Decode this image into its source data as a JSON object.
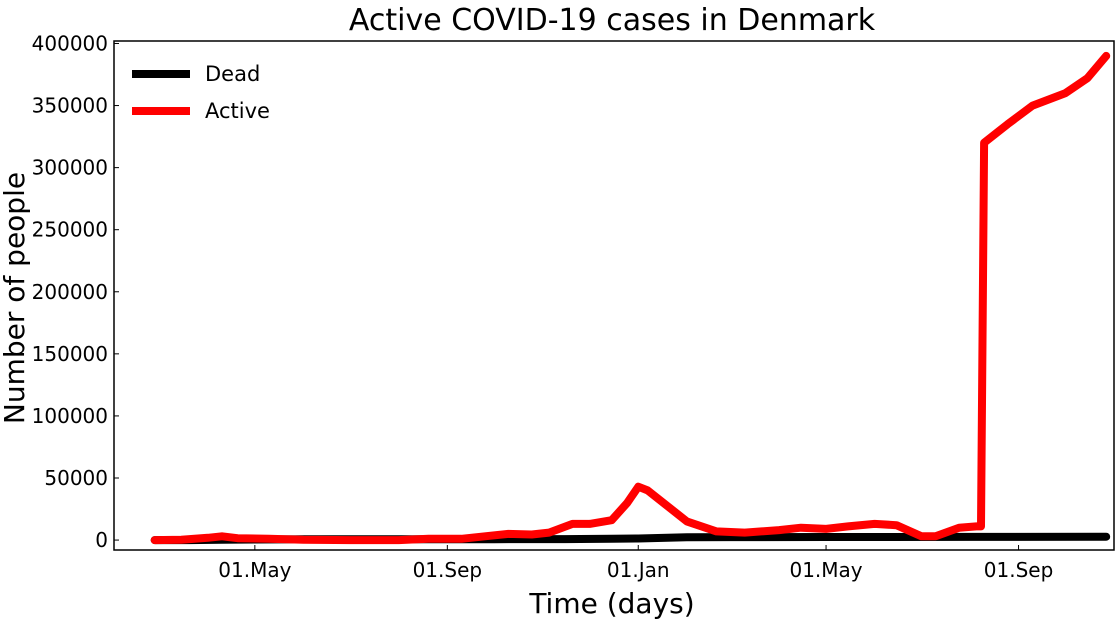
{
  "chart_data": {
    "type": "line",
    "title": "Active COVID-19 cases in Denmark",
    "xlabel": "Time (days)",
    "ylabel": "Number of people",
    "ylim": [
      -8000,
      402000
    ],
    "xlim": [
      "2020-02-01",
      "2021-11-01"
    ],
    "x_ticks": [
      {
        "date": "2020-05-01",
        "label": "01.May"
      },
      {
        "date": "2020-09-01",
        "label": "01.Sep"
      },
      {
        "date": "2021-01-01",
        "label": "01.Jan"
      },
      {
        "date": "2021-05-01",
        "label": "01.May"
      },
      {
        "date": "2021-09-01",
        "label": "01.Sep"
      }
    ],
    "y_ticks": [
      0,
      50000,
      100000,
      150000,
      200000,
      250000,
      300000,
      350000,
      400000
    ],
    "grid": false,
    "legend": "top-left",
    "series": [
      {
        "name": "Dead",
        "color": "#000000",
        "points": [
          [
            "2020-02-27",
            0
          ],
          [
            "2020-03-20",
            10
          ],
          [
            "2020-04-10",
            250
          ],
          [
            "2020-05-01",
            450
          ],
          [
            "2020-06-01",
            590
          ],
          [
            "2020-08-01",
            620
          ],
          [
            "2020-10-01",
            670
          ],
          [
            "2020-11-15",
            780
          ],
          [
            "2020-12-15",
            1000
          ],
          [
            "2021-01-01",
            1300
          ],
          [
            "2021-02-01",
            2200
          ],
          [
            "2021-03-01",
            2400
          ],
          [
            "2021-05-01",
            2500
          ],
          [
            "2021-08-01",
            2560
          ],
          [
            "2021-10-27",
            2700
          ]
        ]
      },
      {
        "name": "Active",
        "color": "#ff0000",
        "points": [
          [
            "2020-02-27",
            0
          ],
          [
            "2020-03-15",
            300
          ],
          [
            "2020-04-01",
            1800
          ],
          [
            "2020-04-10",
            3000
          ],
          [
            "2020-04-20",
            1500
          ],
          [
            "2020-05-10",
            1000
          ],
          [
            "2020-06-01",
            200
          ],
          [
            "2020-07-01",
            0
          ],
          [
            "2020-08-01",
            0
          ],
          [
            "2020-08-20",
            1000
          ],
          [
            "2020-09-10",
            1000
          ],
          [
            "2020-09-25",
            3000
          ],
          [
            "2020-10-10",
            5000
          ],
          [
            "2020-10-25",
            4500
          ],
          [
            "2020-11-05",
            6000
          ],
          [
            "2020-11-20",
            13000
          ],
          [
            "2020-12-01",
            13000
          ],
          [
            "2020-12-15",
            16000
          ],
          [
            "2020-12-25",
            30000
          ],
          [
            "2021-01-01",
            43000
          ],
          [
            "2021-01-07",
            40000
          ],
          [
            "2021-01-20",
            27000
          ],
          [
            "2021-02-01",
            15000
          ],
          [
            "2021-02-20",
            7000
          ],
          [
            "2021-03-10",
            6000
          ],
          [
            "2021-04-01",
            8000
          ],
          [
            "2021-04-15",
            10000
          ],
          [
            "2021-05-01",
            9000
          ],
          [
            "2021-05-15",
            11000
          ],
          [
            "2021-06-01",
            13000
          ],
          [
            "2021-06-15",
            12000
          ],
          [
            "2021-07-01",
            3000
          ],
          [
            "2021-07-10",
            3000
          ],
          [
            "2021-07-25",
            10000
          ],
          [
            "2021-08-05",
            11000
          ],
          [
            "2021-08-08",
            11000
          ],
          [
            "2021-08-10",
            320000
          ],
          [
            "2021-08-25",
            335000
          ],
          [
            "2021-09-10",
            350000
          ],
          [
            "2021-10-01",
            360000
          ],
          [
            "2021-10-15",
            372000
          ],
          [
            "2021-10-27",
            390000
          ]
        ]
      }
    ]
  }
}
